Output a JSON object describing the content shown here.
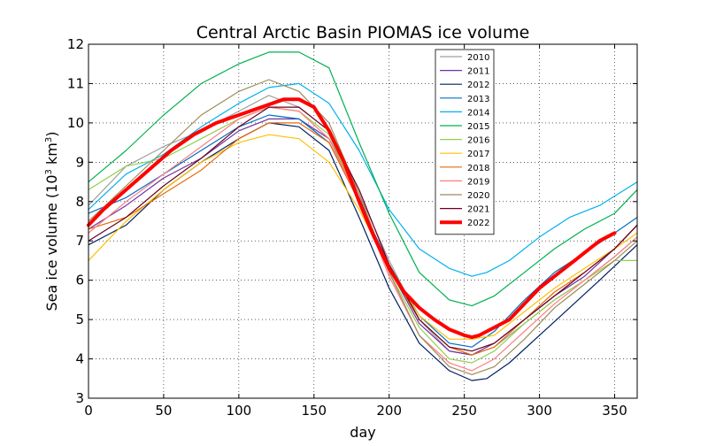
{
  "chart_data": {
    "type": "line",
    "title": "Central Arctic Basin PIOMAS ice volume",
    "xlabel": "day",
    "ylabel_main": "Sea ice volume (10",
    "ylabel_sup1": "3",
    "ylabel_mid": " km",
    "ylabel_sup2": "3",
    "ylabel_end": ")",
    "xlim": [
      0,
      365
    ],
    "ylim": [
      3,
      12
    ],
    "xticks": [
      0,
      50,
      100,
      150,
      200,
      250,
      300,
      350
    ],
    "yticks": [
      3,
      4,
      5,
      6,
      7,
      8,
      9,
      10,
      11,
      12
    ],
    "grid": true,
    "legend_position": "top-center",
    "series": [
      {
        "name": "2010",
        "color": "#a0a0a0",
        "width": 1.2,
        "x": [
          0,
          25,
          50,
          75,
          100,
          120,
          140,
          160,
          180,
          200,
          220,
          240,
          255,
          270,
          290,
          310,
          330,
          350,
          365
        ],
        "y": [
          7.9,
          8.9,
          9.4,
          9.8,
          10.3,
          10.7,
          10.4,
          9.8,
          8.2,
          6.5,
          5.0,
          4.2,
          4.1,
          4.3,
          4.9,
          5.5,
          6.0,
          6.6,
          7.1
        ]
      },
      {
        "name": "2011",
        "color": "#7030a0",
        "width": 1.2,
        "x": [
          0,
          25,
          50,
          75,
          100,
          120,
          140,
          160,
          180,
          200,
          220,
          240,
          255,
          270,
          290,
          310,
          330,
          350,
          365
        ],
        "y": [
          7.3,
          7.9,
          8.6,
          9.1,
          9.8,
          10.1,
          10.1,
          9.6,
          8.1,
          6.3,
          4.9,
          4.2,
          4.1,
          4.4,
          5.0,
          5.6,
          6.1,
          6.8,
          7.4
        ]
      },
      {
        "name": "2012",
        "color": "#002060",
        "width": 1.2,
        "x": [
          0,
          25,
          50,
          75,
          100,
          120,
          140,
          160,
          180,
          200,
          220,
          240,
          255,
          265,
          280,
          300,
          320,
          340,
          365
        ],
        "y": [
          6.9,
          7.4,
          8.3,
          9.0,
          9.6,
          10.0,
          9.9,
          9.3,
          7.6,
          5.8,
          4.4,
          3.7,
          3.45,
          3.5,
          3.9,
          4.6,
          5.3,
          6.0,
          6.9
        ]
      },
      {
        "name": "2013",
        "color": "#0070c0",
        "width": 1.2,
        "x": [
          0,
          25,
          50,
          75,
          100,
          120,
          140,
          160,
          180,
          200,
          220,
          240,
          255,
          270,
          290,
          310,
          330,
          350,
          365
        ],
        "y": [
          7.7,
          8.1,
          8.7,
          9.3,
          9.9,
          10.2,
          10.1,
          9.5,
          8.0,
          6.4,
          5.1,
          4.4,
          4.3,
          4.7,
          5.5,
          6.2,
          6.7,
          7.2,
          7.6
        ]
      },
      {
        "name": "2014",
        "color": "#00b0f0",
        "width": 1.2,
        "x": [
          0,
          25,
          50,
          75,
          100,
          120,
          140,
          160,
          180,
          200,
          220,
          240,
          255,
          265,
          280,
          300,
          320,
          340,
          365
        ],
        "y": [
          7.8,
          8.7,
          9.2,
          9.9,
          10.5,
          10.9,
          11.0,
          10.5,
          9.3,
          7.8,
          6.8,
          6.3,
          6.1,
          6.2,
          6.5,
          7.1,
          7.6,
          7.9,
          8.5
        ]
      },
      {
        "name": "2015",
        "color": "#00b050",
        "width": 1.2,
        "x": [
          0,
          25,
          50,
          75,
          100,
          120,
          140,
          160,
          180,
          200,
          220,
          240,
          255,
          270,
          290,
          310,
          330,
          350,
          365
        ],
        "y": [
          8.5,
          9.3,
          10.2,
          11.0,
          11.5,
          11.8,
          11.8,
          11.4,
          9.5,
          7.7,
          6.2,
          5.5,
          5.35,
          5.6,
          6.2,
          6.8,
          7.3,
          7.7,
          8.3
        ]
      },
      {
        "name": "2016",
        "color": "#92d050",
        "width": 1.2,
        "x": [
          0,
          25,
          50,
          75,
          100,
          120,
          140,
          160,
          180,
          200,
          220,
          240,
          255,
          270,
          290,
          310,
          330,
          350,
          365
        ],
        "y": [
          8.3,
          8.9,
          9.1,
          9.6,
          10.1,
          10.4,
          10.3,
          9.7,
          8.0,
          6.2,
          4.8,
          4.0,
          3.9,
          4.2,
          4.9,
          5.5,
          6.0,
          6.5,
          6.5
        ]
      },
      {
        "name": "2017",
        "color": "#ffc000",
        "width": 1.2,
        "x": [
          0,
          25,
          50,
          75,
          100,
          120,
          140,
          160,
          180,
          200,
          220,
          240,
          255,
          270,
          290,
          310,
          330,
          350,
          365
        ],
        "y": [
          6.5,
          7.5,
          8.3,
          9.0,
          9.5,
          9.7,
          9.6,
          9.0,
          7.8,
          6.3,
          5.1,
          4.5,
          4.5,
          4.6,
          5.2,
          5.8,
          6.3,
          6.8,
          7.2
        ]
      },
      {
        "name": "2018",
        "color": "#e46c0a",
        "width": 1.2,
        "x": [
          0,
          25,
          50,
          75,
          100,
          120,
          140,
          160,
          180,
          200,
          220,
          240,
          255,
          270,
          290,
          310,
          330,
          350,
          365
        ],
        "y": [
          7.3,
          7.6,
          8.2,
          8.8,
          9.6,
          10.0,
          10.0,
          9.5,
          8.0,
          6.3,
          5.0,
          4.3,
          4.1,
          4.3,
          5.0,
          5.7,
          6.2,
          6.8,
          7.4
        ]
      },
      {
        "name": "2019",
        "color": "#ff7c80",
        "width": 1.2,
        "x": [
          0,
          25,
          50,
          75,
          100,
          120,
          140,
          160,
          180,
          200,
          220,
          240,
          255,
          270,
          290,
          310,
          330,
          350,
          365
        ],
        "y": [
          7.2,
          8.0,
          8.7,
          9.4,
          10.1,
          10.4,
          10.3,
          9.6,
          8.0,
          6.1,
          4.6,
          3.9,
          3.7,
          4.0,
          4.7,
          5.4,
          6.0,
          6.6,
          7.1
        ]
      },
      {
        "name": "2020",
        "color": "#9c8c5a",
        "width": 1.2,
        "x": [
          0,
          25,
          50,
          75,
          100,
          120,
          140,
          160,
          180,
          200,
          220,
          240,
          255,
          270,
          290,
          310,
          330,
          350,
          365
        ],
        "y": [
          7.5,
          8.4,
          9.3,
          10.2,
          10.8,
          11.1,
          10.8,
          10.0,
          8.2,
          6.2,
          4.6,
          3.8,
          3.6,
          3.8,
          4.5,
          5.3,
          5.9,
          6.5,
          7.0
        ]
      },
      {
        "name": "2021",
        "color": "#6b0020",
        "width": 1.2,
        "x": [
          0,
          25,
          50,
          75,
          100,
          120,
          140,
          160,
          180,
          200,
          220,
          240,
          255,
          270,
          290,
          310,
          330,
          350,
          365
        ],
        "y": [
          7.0,
          7.6,
          8.4,
          9.1,
          9.9,
          10.4,
          10.4,
          9.8,
          8.3,
          6.4,
          5.0,
          4.3,
          4.2,
          4.4,
          5.0,
          5.6,
          6.2,
          6.8,
          7.4
        ]
      },
      {
        "name": "2022",
        "color": "#ff0000",
        "width": 4,
        "x": [
          0,
          10,
          25,
          40,
          55,
          70,
          85,
          100,
          115,
          130,
          140,
          150,
          160,
          170,
          180,
          190,
          200,
          210,
          220,
          230,
          240,
          250,
          255,
          260,
          270,
          280,
          290,
          300,
          310,
          320,
          330,
          340,
          350
        ],
        "y": [
          7.4,
          7.8,
          8.3,
          8.8,
          9.3,
          9.7,
          10.0,
          10.2,
          10.4,
          10.6,
          10.6,
          10.4,
          9.8,
          9.0,
          8.0,
          7.1,
          6.3,
          5.7,
          5.3,
          5.0,
          4.75,
          4.6,
          4.55,
          4.6,
          4.8,
          5.0,
          5.4,
          5.8,
          6.1,
          6.4,
          6.7,
          7.0,
          7.2
        ]
      }
    ]
  }
}
